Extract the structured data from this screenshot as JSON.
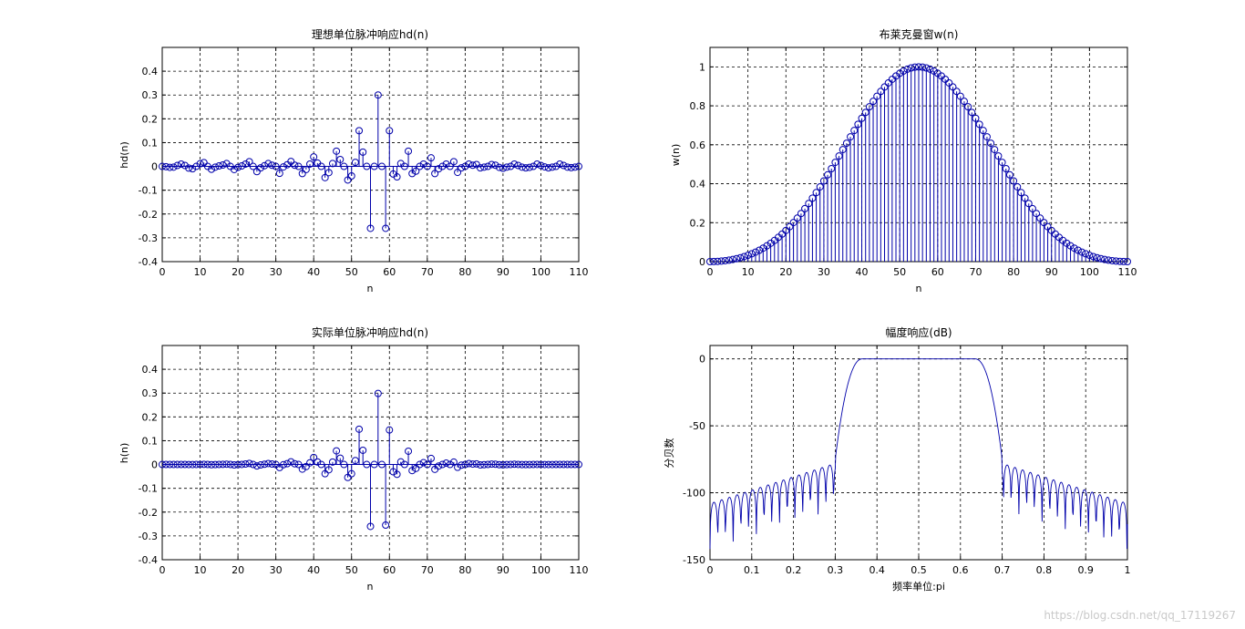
{
  "figure": {
    "background": "#ffffff",
    "line_color": "#0000aa"
  },
  "watermark": "https://blog.csdn.net/qq_17119267",
  "chart_data": [
    {
      "id": "ideal",
      "type": "stem",
      "title": "理想单位脉冲响应hd(n)",
      "xlabel": "n",
      "ylabel": "hd(n)",
      "xlim": [
        0,
        110
      ],
      "ylim": [
        -0.4,
        0.5
      ],
      "xticks": [
        0,
        10,
        20,
        30,
        40,
        50,
        60,
        70,
        80,
        90,
        100,
        110
      ],
      "yticks": [
        -0.4,
        -0.3,
        -0.2,
        -0.1,
        0,
        0.1,
        0.2,
        0.3,
        0.4
      ],
      "ytick_labels": [
        "-0.4",
        "-0.3",
        "-0.2",
        "-0.1",
        "0",
        "0.1",
        "0.2",
        "0.3",
        "0.4"
      ],
      "grid": true,
      "x": [
        0,
        1,
        2,
        3,
        4,
        5,
        6,
        7,
        8,
        9,
        10,
        11,
        12,
        13,
        14,
        15,
        16,
        17,
        18,
        19,
        20,
        21,
        22,
        23,
        24,
        25,
        26,
        27,
        28,
        29,
        30,
        31,
        32,
        33,
        34,
        35,
        36,
        37,
        38,
        39,
        40,
        41,
        42,
        43,
        44,
        45,
        46,
        47,
        48,
        49,
        50,
        51,
        52,
        53,
        54,
        55,
        56,
        57,
        58,
        59,
        60,
        61,
        62,
        63,
        64,
        65,
        66,
        67,
        68,
        69,
        70,
        71,
        72,
        73,
        74,
        75,
        76,
        77,
        78,
        79,
        80,
        81,
        82,
        83,
        84,
        85,
        86,
        87,
        88,
        89,
        90,
        91,
        92,
        93,
        94,
        95,
        96,
        97,
        98,
        99,
        100,
        101,
        102,
        103,
        104,
        105,
        106,
        107,
        108,
        109,
        110
      ],
      "values": [
        0,
        -0.001,
        -0.004,
        -0.003,
        0.004,
        0.01,
        0.004,
        -0.007,
        -0.01,
        0,
        0.011,
        0.016,
        0,
        -0.012,
        -0.003,
        0.002,
        0.006,
        0.012,
        0,
        -0.013,
        -0.004,
        0.002,
        0.01,
        0.02,
        0,
        -0.022,
        -0.006,
        0.003,
        0.012,
        0.005,
        0,
        -0.029,
        -0.002,
        0.007,
        0.021,
        0.005,
        0,
        -0.03,
        -0.013,
        0.01,
        0.04,
        0.014,
        0,
        -0.047,
        -0.026,
        0.012,
        0.064,
        0.029,
        0,
        -0.057,
        -0.04,
        0.017,
        0.15,
        0.06,
        0,
        -0.26,
        0,
        0.3,
        0,
        -0.26,
        0.15,
        -0.032,
        -0.044,
        0.012,
        0,
        0.064,
        -0.03,
        -0.02,
        0,
        0.01,
        0,
        0.036,
        -0.03,
        -0.01,
        0,
        0.01,
        0,
        0.02,
        -0.025,
        -0.006,
        0,
        0.01,
        0.005,
        0.008,
        -0.006,
        -0.003,
        0,
        0.008,
        0.005,
        -0.004,
        -0.008,
        -0.003,
        0,
        0.01,
        0.004,
        -0.003,
        -0.006,
        -0.004,
        0,
        0.01,
        0.004,
        -0.002,
        -0.006,
        -0.003,
        0,
        0.01,
        0.004,
        -0.003,
        -0.005,
        -0.003,
        0
      ]
    },
    {
      "id": "window",
      "type": "stem",
      "title": "布莱克曼窗w(n)",
      "xlabel": "n",
      "ylabel": "w(n)",
      "xlim": [
        0,
        110
      ],
      "ylim": [
        0,
        1.1
      ],
      "xticks": [
        0,
        10,
        20,
        30,
        40,
        50,
        60,
        70,
        80,
        90,
        100,
        110
      ],
      "yticks": [
        0,
        0.2,
        0.4,
        0.6,
        0.8,
        1
      ],
      "ytick_labels": [
        "0",
        "0.2",
        "0.4",
        "0.6",
        "0.8",
        "1"
      ],
      "grid": true,
      "n_points": 111,
      "formula": "0.42 - 0.5*cos(2*pi*n/110) + 0.08*cos(4*pi*n/110)"
    },
    {
      "id": "actual",
      "type": "stem",
      "title": "实际单位脉冲响应hd(n)",
      "xlabel": "n",
      "ylabel": "h(n)",
      "xlim": [
        0,
        110
      ],
      "ylim": [
        -0.4,
        0.5
      ],
      "xticks": [
        0,
        10,
        20,
        30,
        40,
        50,
        60,
        70,
        80,
        90,
        100,
        110
      ],
      "yticks": [
        -0.4,
        -0.3,
        -0.2,
        -0.1,
        0,
        0.1,
        0.2,
        0.3,
        0.4
      ],
      "ytick_labels": [
        "-0.4",
        "-0.3",
        "-0.2",
        "-0.1",
        "0",
        "0.1",
        "0.2",
        "0.3",
        "0.4"
      ],
      "grid": true,
      "note": "values = ideal hd(n) multiplied by Blackman window w(n)"
    },
    {
      "id": "magnitude",
      "type": "line",
      "title": "幅度响应(dB)",
      "xlabel": "频率单位:pi",
      "ylabel": "分贝数",
      "xlim": [
        0,
        1
      ],
      "ylim": [
        -150,
        10
      ],
      "xticks": [
        0,
        0.1,
        0.2,
        0.3,
        0.4,
        0.5,
        0.6,
        0.7,
        0.8,
        0.9,
        1
      ],
      "xtick_labels": [
        "0",
        "0.1",
        "0.2",
        "0.3",
        "0.4",
        "0.5",
        "0.6",
        "0.7",
        "0.8",
        "0.9",
        "1"
      ],
      "yticks": [
        0,
        -50,
        -100,
        -150
      ],
      "ytick_labels": [
        "0",
        "-50",
        "-100",
        "-150"
      ],
      "grid": true,
      "passband": [
        0.35,
        0.65
      ],
      "transition": [
        [
          0.3,
          0.35
        ],
        [
          0.65,
          0.7
        ]
      ],
      "stopband_level": -100
    }
  ]
}
